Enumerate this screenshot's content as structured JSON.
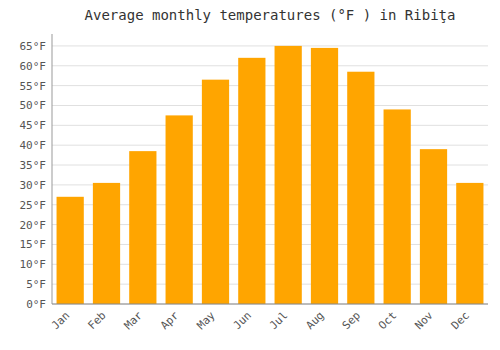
{
  "chart_data": {
    "type": "bar",
    "title": "Average monthly temperatures (°F ) in Ribiţa",
    "categories": [
      "Jan",
      "Feb",
      "Mar",
      "Apr",
      "May",
      "Jun",
      "Jul",
      "Aug",
      "Sep",
      "Oct",
      "Nov",
      "Dec"
    ],
    "values": [
      27,
      30.5,
      38.5,
      47.5,
      56.5,
      62,
      65,
      64.5,
      58.5,
      49,
      39,
      30.5
    ],
    "color": "#FFA500",
    "ylim": [
      0,
      68
    ],
    "yticks": [
      {
        "value": 0,
        "label": "0°F"
      },
      {
        "value": 5,
        "label": "5°F"
      },
      {
        "value": 10,
        "label": "10°F"
      },
      {
        "value": 15,
        "label": "15°F"
      },
      {
        "value": 20,
        "label": "20°F"
      },
      {
        "value": 25,
        "label": "25°F"
      },
      {
        "value": 30,
        "label": "30°F"
      },
      {
        "value": 35,
        "label": "35°F"
      },
      {
        "value": 40,
        "label": "40°F"
      },
      {
        "value": 45,
        "label": "45°F"
      },
      {
        "value": 50,
        "label": "50°F"
      },
      {
        "value": 55,
        "label": "55°F"
      },
      {
        "value": 60,
        "label": "60°F"
      },
      {
        "value": 65,
        "label": "65°F"
      }
    ],
    "grid": true
  }
}
